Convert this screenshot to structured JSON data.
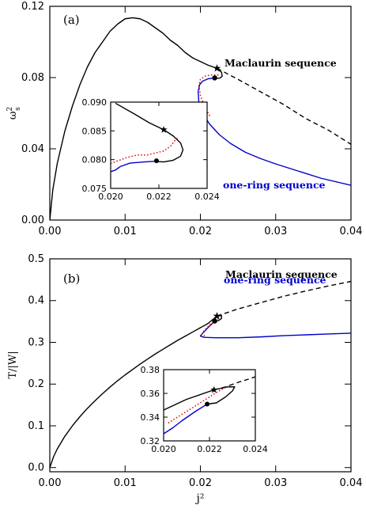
{
  "colors": {
    "maclaurin": "#000000",
    "one_ring": "#0000cc",
    "dotted": "#dd0000",
    "axes": "#000000",
    "background": "#ffffff"
  },
  "chart_data": [
    {
      "type": "line",
      "panel_label": "(a)",
      "xlabel": "",
      "ylabel": "ω²s",
      "xlim": [
        0.0,
        0.04
      ],
      "ylim": [
        0.0,
        0.12
      ],
      "x_ticks": [
        "0.00",
        "0.01",
        "0.02",
        "0.03",
        "0.04"
      ],
      "y_ticks": [
        "0.00",
        "0.04",
        "0.08",
        "0.12"
      ],
      "annotations": {
        "maclaurin": "Maclaurin sequence",
        "one_ring": "one-ring sequence"
      },
      "series": [
        {
          "role": "maclaurin-solid",
          "style": "solid",
          "color": "#000000",
          "points": [
            [
              0.0,
              0.0
            ],
            [
              0.0004,
              0.017
            ],
            [
              0.001,
              0.032
            ],
            [
              0.002,
              0.05
            ],
            [
              0.003,
              0.064
            ],
            [
              0.004,
              0.076
            ],
            [
              0.005,
              0.086
            ],
            [
              0.006,
              0.094
            ],
            [
              0.007,
              0.1
            ],
            [
              0.008,
              0.106
            ],
            [
              0.009,
              0.11
            ],
            [
              0.01,
              0.113
            ],
            [
              0.011,
              0.1136
            ],
            [
              0.012,
              0.113
            ],
            [
              0.013,
              0.111
            ],
            [
              0.014,
              0.108
            ],
            [
              0.015,
              0.105
            ],
            [
              0.016,
              0.101
            ],
            [
              0.017,
              0.098
            ],
            [
              0.018,
              0.094
            ],
            [
              0.019,
              0.091
            ],
            [
              0.02,
              0.089
            ],
            [
              0.021,
              0.087
            ],
            [
              0.0222,
              0.0852
            ]
          ]
        },
        {
          "role": "maclaurin-loop",
          "style": "solid",
          "color": "#000000",
          "points": [
            [
              0.0222,
              0.0852
            ],
            [
              0.0228,
              0.083
            ],
            [
              0.0229,
              0.0808
            ],
            [
              0.0226,
              0.0797
            ],
            [
              0.0222,
              0.0796
            ],
            [
              0.022,
              0.0798
            ]
          ]
        },
        {
          "role": "maclaurin-dashed",
          "style": "dashed",
          "color": "#000000",
          "points": [
            [
              0.0222,
              0.0852
            ],
            [
              0.025,
              0.079
            ],
            [
              0.028,
              0.072
            ],
            [
              0.031,
              0.065
            ],
            [
              0.034,
              0.057
            ],
            [
              0.037,
              0.0505
            ],
            [
              0.04,
              0.0425
            ]
          ]
        },
        {
          "role": "one-ring",
          "style": "solid",
          "color": "#0000cc",
          "points": [
            [
              0.022,
              0.0798
            ],
            [
              0.021,
              0.0793
            ],
            [
              0.0203,
              0.078
            ],
            [
              0.0199,
              0.076
            ],
            [
              0.0197,
              0.072
            ],
            [
              0.0198,
              0.066
            ],
            [
              0.0203,
              0.06
            ],
            [
              0.0212,
              0.054
            ],
            [
              0.0225,
              0.048
            ],
            [
              0.024,
              0.043
            ],
            [
              0.026,
              0.038
            ],
            [
              0.028,
              0.0345
            ],
            [
              0.03,
              0.0315
            ],
            [
              0.033,
              0.0275
            ],
            [
              0.036,
              0.0235
            ],
            [
              0.04,
              0.0195
            ]
          ]
        },
        {
          "role": "dotted",
          "style": "dotted",
          "color": "#dd0000",
          "points": [
            [
              0.0224,
              0.0814
            ],
            [
              0.0215,
              0.0815
            ],
            [
              0.0206,
              0.0808
            ],
            [
              0.02,
              0.079
            ],
            [
              0.0198,
              0.0755
            ],
            [
              0.02,
              0.07
            ],
            [
              0.0205,
              0.064
            ],
            [
              0.0213,
              0.058
            ]
          ]
        }
      ],
      "markers": [
        {
          "shape": "star",
          "x": 0.0222,
          "y": 0.0852
        },
        {
          "shape": "circle",
          "x": 0.0219,
          "y": 0.0798
        }
      ],
      "inset": {
        "xlim": [
          0.02,
          0.024
        ],
        "ylim": [
          0.075,
          0.09
        ],
        "x_ticks": [
          "0.020",
          "0.022",
          "0.024"
        ],
        "y_ticks": [
          "0.075",
          "0.080",
          "0.085",
          "0.090"
        ],
        "series": [
          {
            "role": "maclaurin",
            "style": "solid",
            "color": "#000000",
            "points": [
              [
                0.0202,
                0.0898
              ],
              [
                0.021,
                0.0879
              ],
              [
                0.0216,
                0.0864
              ],
              [
                0.0222,
                0.0852
              ],
              [
                0.0226,
                0.0841
              ],
              [
                0.0229,
                0.0829
              ],
              [
                0.023,
                0.0817
              ],
              [
                0.0229,
                0.0806
              ],
              [
                0.0226,
                0.0799
              ],
              [
                0.0222,
                0.0796
              ],
              [
                0.0218,
                0.0797
              ]
            ]
          },
          {
            "role": "one-ring",
            "style": "solid",
            "color": "#0000cc",
            "points": [
              [
                0.0218,
                0.0797
              ],
              [
                0.0214,
                0.0796
              ],
              [
                0.0208,
                0.0794
              ],
              [
                0.0204,
                0.0788
              ],
              [
                0.0202,
                0.0782
              ],
              [
                0.02,
                0.0779
              ]
            ]
          },
          {
            "role": "dotted",
            "style": "dotted",
            "color": "#dd0000",
            "points": [
              [
                0.02,
                0.0793
              ],
              [
                0.0203,
                0.0798
              ],
              [
                0.0207,
                0.0804
              ],
              [
                0.0211,
                0.0808
              ],
              [
                0.0215,
                0.0808
              ],
              [
                0.0219,
                0.0812
              ],
              [
                0.0222,
                0.0815
              ],
              [
                0.0225,
                0.0824
              ],
              [
                0.0227,
                0.0835
              ],
              [
                0.0228,
                0.0838
              ]
            ]
          }
        ],
        "markers": [
          {
            "shape": "star",
            "x": 0.0222,
            "y": 0.0852
          },
          {
            "shape": "circle",
            "x": 0.0219,
            "y": 0.0798
          }
        ]
      }
    },
    {
      "type": "line",
      "panel_label": "(b)",
      "xlabel": "j²",
      "ylabel": "T/|W|",
      "xlim": [
        0.0,
        0.04
      ],
      "ylim": [
        -0.01,
        0.5
      ],
      "x_ticks": [
        "0.00",
        "0.01",
        "0.02",
        "0.03",
        "0.04"
      ],
      "y_ticks": [
        "0.0",
        "0.1",
        "0.2",
        "0.3",
        "0.4",
        "0.5"
      ],
      "annotations": {
        "maclaurin": "Maclaurin sequence",
        "one_ring": "one-ring sequence"
      },
      "series": [
        {
          "role": "maclaurin-solid",
          "style": "solid",
          "color": "#000000",
          "points": [
            [
              0.0,
              0.0
            ],
            [
              0.0005,
              0.026
            ],
            [
              0.001,
              0.045
            ],
            [
              0.002,
              0.075
            ],
            [
              0.003,
              0.1
            ],
            [
              0.004,
              0.122
            ],
            [
              0.005,
              0.142
            ],
            [
              0.006,
              0.16
            ],
            [
              0.007,
              0.177
            ],
            [
              0.008,
              0.193
            ],
            [
              0.009,
              0.208
            ],
            [
              0.01,
              0.222
            ],
            [
              0.011,
              0.235
            ],
            [
              0.012,
              0.248
            ],
            [
              0.013,
              0.26
            ],
            [
              0.014,
              0.272
            ],
            [
              0.015,
              0.283
            ],
            [
              0.016,
              0.294
            ],
            [
              0.017,
              0.305
            ],
            [
              0.018,
              0.315
            ],
            [
              0.019,
              0.325
            ],
            [
              0.02,
              0.335
            ],
            [
              0.021,
              0.345
            ],
            [
              0.0222,
              0.363
            ]
          ]
        },
        {
          "role": "maclaurin-loop",
          "style": "solid",
          "color": "#000000",
          "points": [
            [
              0.0222,
              0.363
            ],
            [
              0.0228,
              0.364
            ],
            [
              0.0228,
              0.357
            ],
            [
              0.0224,
              0.352
            ],
            [
              0.0219,
              0.351
            ]
          ]
        },
        {
          "role": "maclaurin-dashed",
          "style": "dashed",
          "color": "#000000",
          "points": [
            [
              0.0222,
              0.363
            ],
            [
              0.025,
              0.38
            ],
            [
              0.028,
              0.395
            ],
            [
              0.031,
              0.41
            ],
            [
              0.034,
              0.423
            ],
            [
              0.037,
              0.435
            ],
            [
              0.04,
              0.446
            ]
          ]
        },
        {
          "role": "one-ring",
          "style": "solid",
          "color": "#0000cc",
          "points": [
            [
              0.0219,
              0.351
            ],
            [
              0.021,
              0.335
            ],
            [
              0.0203,
              0.322
            ],
            [
              0.02,
              0.315
            ],
            [
              0.0205,
              0.312
            ],
            [
              0.022,
              0.311
            ],
            [
              0.025,
              0.311
            ],
            [
              0.028,
              0.313
            ],
            [
              0.031,
              0.316
            ],
            [
              0.034,
              0.318
            ],
            [
              0.037,
              0.32
            ],
            [
              0.04,
              0.322
            ]
          ]
        },
        {
          "role": "dotted",
          "style": "dotted",
          "color": "#dd0000",
          "points": [
            [
              0.0224,
              0.357
            ],
            [
              0.0213,
              0.343
            ],
            [
              0.0205,
              0.328
            ],
            [
              0.0202,
              0.319
            ],
            [
              0.0206,
              0.315
            ]
          ]
        }
      ],
      "markers": [
        {
          "shape": "star",
          "x": 0.0222,
          "y": 0.363
        },
        {
          "shape": "circle",
          "x": 0.0219,
          "y": 0.351
        }
      ],
      "inset": {
        "xlim": [
          0.02,
          0.024
        ],
        "ylim": [
          0.32,
          0.38
        ],
        "x_ticks": [
          "0.020",
          "0.022",
          "0.024"
        ],
        "y_ticks": [
          "0.32",
          "0.34",
          "0.36",
          "0.38"
        ],
        "series": [
          {
            "role": "maclaurin-solid",
            "style": "solid",
            "color": "#000000",
            "points": [
              [
                0.02,
                0.346
              ],
              [
                0.021,
                0.355
              ],
              [
                0.0222,
                0.363
              ]
            ]
          },
          {
            "role": "maclaurin-loop",
            "style": "solid",
            "color": "#000000",
            "points": [
              [
                0.0222,
                0.363
              ],
              [
                0.0228,
                0.3655
              ],
              [
                0.0231,
                0.3655
              ],
              [
                0.023,
                0.362
              ],
              [
                0.0227,
                0.357
              ],
              [
                0.0223,
                0.352
              ],
              [
                0.0219,
                0.351
              ]
            ]
          },
          {
            "role": "maclaurin-dashed",
            "style": "dashed",
            "color": "#000000",
            "points": [
              [
                0.0222,
                0.363
              ],
              [
                0.0227,
                0.3655
              ],
              [
                0.0232,
                0.369
              ],
              [
                0.0237,
                0.372
              ],
              [
                0.024,
                0.374
              ]
            ]
          },
          {
            "role": "one-ring",
            "style": "solid",
            "color": "#0000cc",
            "points": [
              [
                0.0219,
                0.351
              ],
              [
                0.0214,
                0.345
              ],
              [
                0.0208,
                0.337
              ],
              [
                0.0204,
                0.331
              ],
              [
                0.02,
                0.326
              ]
            ]
          },
          {
            "role": "dotted",
            "style": "dotted",
            "color": "#dd0000",
            "points": [
              [
                0.0202,
                0.335
              ],
              [
                0.0206,
                0.34
              ],
              [
                0.0211,
                0.346
              ],
              [
                0.0216,
                0.352
              ],
              [
                0.022,
                0.357
              ],
              [
                0.0224,
                0.362
              ],
              [
                0.0228,
                0.366
              ]
            ]
          }
        ],
        "markers": [
          {
            "shape": "star",
            "x": 0.0222,
            "y": 0.363
          },
          {
            "shape": "circle",
            "x": 0.0219,
            "y": 0.351
          }
        ]
      }
    }
  ]
}
